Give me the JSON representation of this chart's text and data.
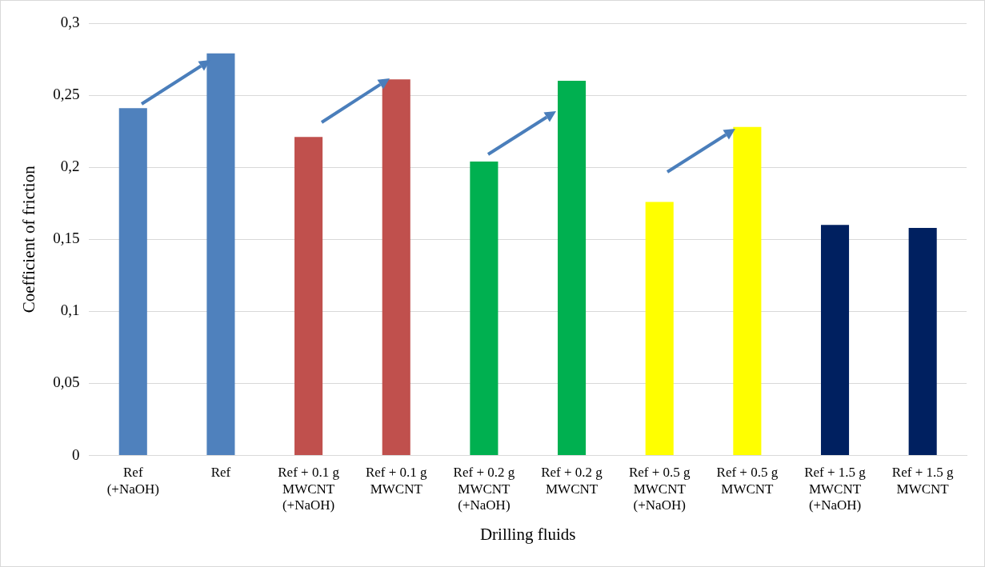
{
  "chart_data": {
    "type": "bar",
    "xlabel": "Drilling fluids",
    "ylabel": "Coefficient of friction",
    "categories": [
      "Ref\n(+NaOH)",
      "Ref",
      "Ref + 0.1 g\nMWCNT\n(+NaOH)",
      "Ref + 0.1 g\nMWCNT",
      "Ref + 0.2 g\nMWCNT\n(+NaOH)",
      "Ref + 0.2 g\nMWCNT",
      "Ref + 0.5 g\nMWCNT\n(+NaOH)",
      "Ref + 0.5 g\nMWCNT",
      "Ref + 1.5 g\nMWCNT\n(+NaOH)",
      "Ref + 1.5 g\nMWCNT"
    ],
    "values": [
      0.241,
      0.279,
      0.221,
      0.261,
      0.204,
      0.26,
      0.176,
      0.228,
      0.16,
      0.158
    ],
    "colors": [
      "#4f81bd",
      "#4f81bd",
      "#c0504d",
      "#c0504d",
      "#00b050",
      "#00b050",
      "#ffff00",
      "#ffff00",
      "#002060",
      "#002060"
    ],
    "ylim": [
      0,
      0.3
    ],
    "yticks": [
      {
        "value": 0,
        "label": "0"
      },
      {
        "value": 0.05,
        "label": "0,05"
      },
      {
        "value": 0.1,
        "label": "0,1"
      },
      {
        "value": 0.15,
        "label": "0,15"
      },
      {
        "value": 0.2,
        "label": "0,2"
      },
      {
        "value": 0.25,
        "label": "0,25"
      },
      {
        "value": 0.3,
        "label": "0,3"
      }
    ],
    "grid": "y",
    "legend": false
  }
}
